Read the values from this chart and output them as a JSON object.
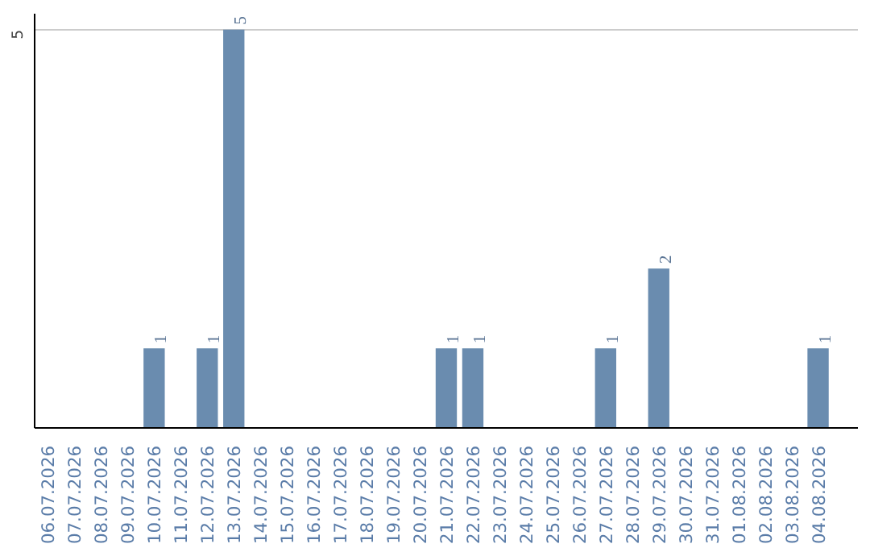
{
  "chart_data": {
    "type": "bar",
    "categories": [
      "06.07.2026",
      "07.07.2026",
      "08.07.2026",
      "09.07.2026",
      "10.07.2026",
      "11.07.2026",
      "12.07.2026",
      "13.07.2026",
      "14.07.2026",
      "15.07.2026",
      "16.07.2026",
      "17.07.2026",
      "18.07.2026",
      "19.07.2026",
      "20.07.2026",
      "21.07.2026",
      "22.07.2026",
      "23.07.2026",
      "24.07.2026",
      "25.07.2026",
      "26.07.2026",
      "27.07.2026",
      "28.07.2026",
      "29.07.2026",
      "30.07.2026",
      "31.07.2026",
      "01.08.2026",
      "02.08.2026",
      "03.08.2026",
      "04.08.2026"
    ],
    "values": [
      0,
      0,
      0,
      0,
      1,
      0,
      1,
      5,
      0,
      0,
      0,
      0,
      0,
      0,
      0,
      1,
      1,
      0,
      0,
      0,
      0,
      1,
      0,
      2,
      0,
      0,
      0,
      0,
      0,
      1
    ],
    "color": "#6a8caf",
    "value_labels": [
      null,
      null,
      null,
      null,
      "1",
      null,
      "1",
      "5",
      null,
      null,
      null,
      null,
      null,
      null,
      null,
      "1",
      "1",
      null,
      null,
      null,
      null,
      "1",
      null,
      "2",
      null,
      null,
      null,
      null,
      null,
      "1"
    ],
    "ylim": [
      0,
      5.2
    ],
    "yticks": [
      5
    ],
    "grid": "y"
  }
}
